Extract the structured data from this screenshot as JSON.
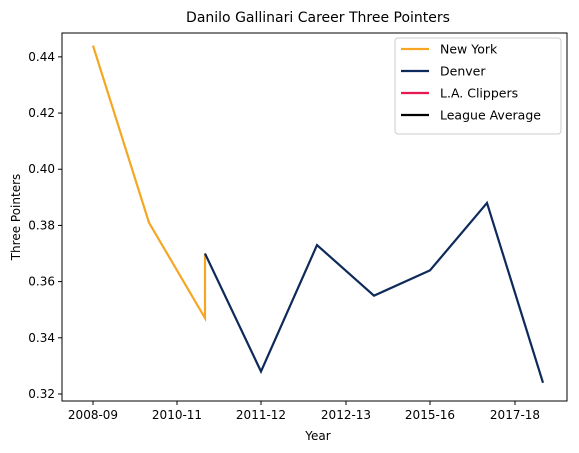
{
  "chart_data": {
    "type": "line",
    "title": "Danilo Gallinari Career Three Pointers",
    "xlabel": "Year",
    "ylabel": "Three Pointers",
    "x_tick_labels": [
      "2008-09",
      "2010-11",
      "2011-12",
      "2012-13",
      "2015-16",
      "2017-18"
    ],
    "ylim": [
      0.3175,
      0.4485
    ],
    "yticks": [
      0.32,
      0.34,
      0.36,
      0.38,
      0.4,
      0.42,
      0.44
    ],
    "ytick_labels": [
      "0.32",
      "0.34",
      "0.36",
      "0.38",
      "0.40",
      "0.42",
      "0.44"
    ],
    "legend_position": "top-right",
    "grid": false,
    "series": [
      {
        "name": "New York",
        "color": "#f5a623",
        "points": [
          {
            "x": "2008-09",
            "y": 0.444
          },
          {
            "x": "2009-10",
            "y": 0.381
          },
          {
            "x": "2010-11",
            "y": 0.347
          },
          {
            "x": "2010-11",
            "y": 0.37
          }
        ]
      },
      {
        "name": "Denver",
        "color": "#0e2a5a",
        "points": [
          {
            "x": "2010-11",
            "y": 0.37
          },
          {
            "x": "2011-12",
            "y": 0.328
          },
          {
            "x": "2012-13",
            "y": 0.373
          },
          {
            "x": "2013-14",
            "y": 0.355
          },
          {
            "x": "2015-16",
            "y": 0.364
          },
          {
            "x": "2016-17",
            "y": 0.388
          },
          {
            "x": "2017-18",
            "y": 0.324
          }
        ]
      },
      {
        "name": "L.A. Clippers",
        "color": "#e8174e",
        "points": []
      },
      {
        "name": "League Average",
        "color": "#000000",
        "points": []
      }
    ]
  }
}
